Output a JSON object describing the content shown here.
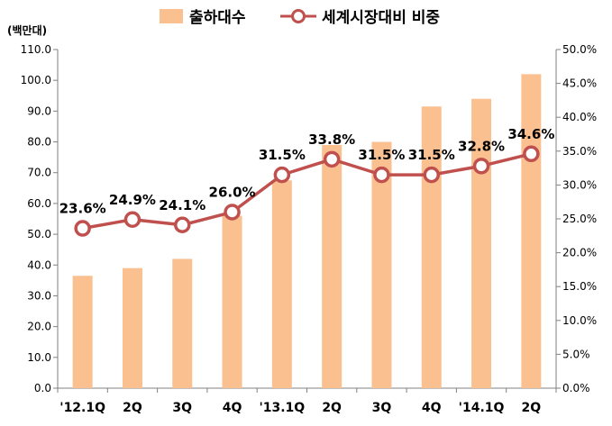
{
  "chart_data": {
    "type": "bar+line",
    "unit_label": "(백만대)",
    "categories": [
      "'12.1Q",
      "2Q",
      "3Q",
      "4Q",
      "'13.1Q",
      "2Q",
      "3Q",
      "4Q",
      "'14.1Q",
      "2Q"
    ],
    "series": [
      {
        "name": "출하대수",
        "type": "bar",
        "axis": "left",
        "color": "#FAC090",
        "values": [
          36.5,
          39.0,
          42.0,
          56.0,
          67.5,
          79.0,
          80.0,
          91.5,
          94.0,
          102.0
        ]
      },
      {
        "name": "세계시장대비 비중",
        "type": "line",
        "axis": "right",
        "color": "#C0504D",
        "values": [
          23.6,
          24.9,
          24.1,
          26.0,
          31.5,
          33.8,
          31.5,
          31.5,
          32.8,
          34.6
        ],
        "labels": [
          "23.6%",
          "24.9%",
          "24.1%",
          "26.0%",
          "31.5%",
          "33.8%",
          "31.5%",
          "31.5%",
          "32.8%",
          "34.6%"
        ]
      }
    ],
    "y_left": {
      "min": 0,
      "max": 110,
      "step": 10,
      "ticks": [
        "0.0",
        "10.0",
        "20.0",
        "30.0",
        "40.0",
        "50.0",
        "60.0",
        "70.0",
        "80.0",
        "90.0",
        "100.0",
        "110.0"
      ]
    },
    "y_right": {
      "min": 0,
      "max": 50,
      "step": 5,
      "ticks": [
        "0.0%",
        "5.0%",
        "10.0%",
        "15.0%",
        "20.0%",
        "25.0%",
        "30.0%",
        "35.0%",
        "40.0%",
        "45.0%",
        "50.0%"
      ]
    },
    "legend": {
      "position": "top",
      "entries": [
        "출하대수",
        "세계시장대비 비중"
      ]
    },
    "grid": false
  }
}
